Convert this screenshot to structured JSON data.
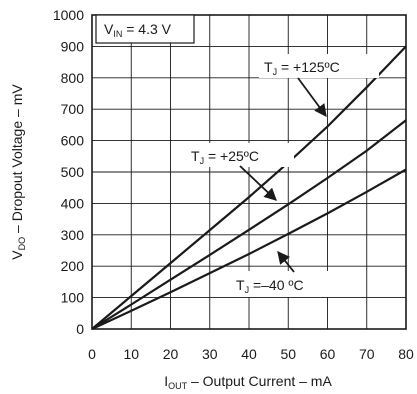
{
  "chart_data": {
    "type": "line",
    "xlim": [
      0,
      80
    ],
    "ylim": [
      0,
      1000
    ],
    "x_ticks": [
      0,
      10,
      20,
      30,
      40,
      50,
      60,
      70,
      80
    ],
    "y_ticks": [
      0,
      100,
      200,
      300,
      400,
      500,
      600,
      700,
      800,
      900,
      1000
    ],
    "grid": true,
    "xlabel": {
      "main": "I",
      "sub": "OUT",
      "rest": " – Output Current – mA"
    },
    "ylabel": {
      "main": "V",
      "sub": "DO",
      "rest": " – Dropout Voltage – mV"
    },
    "condition": {
      "main": "V",
      "sub": "IN",
      "rest": " = 4.3 V"
    },
    "series": [
      {
        "label_main": "T",
        "label_sub": "J",
        "label_rest": " = +125ºC",
        "x": [
          0,
          10,
          20,
          30,
          40,
          50,
          60,
          70,
          80
        ],
        "y": [
          0,
          105,
          210,
          315,
          420,
          530,
          645,
          770,
          900
        ]
      },
      {
        "label_main": "T",
        "label_sub": "J",
        "label_rest": " = +25ºC",
        "x": [
          0,
          10,
          20,
          30,
          40,
          50,
          60,
          70,
          80
        ],
        "y": [
          0,
          78,
          157,
          236,
          316,
          397,
          481,
          568,
          665
        ]
      },
      {
        "label_main": "T",
        "label_sub": "J",
        "label_rest": " =–40 ºC",
        "x": [
          0,
          10,
          20,
          30,
          40,
          50,
          60,
          70,
          80
        ],
        "y": [
          0,
          58,
          117,
          178,
          239,
          303,
          368,
          437,
          508
        ]
      }
    ]
  }
}
